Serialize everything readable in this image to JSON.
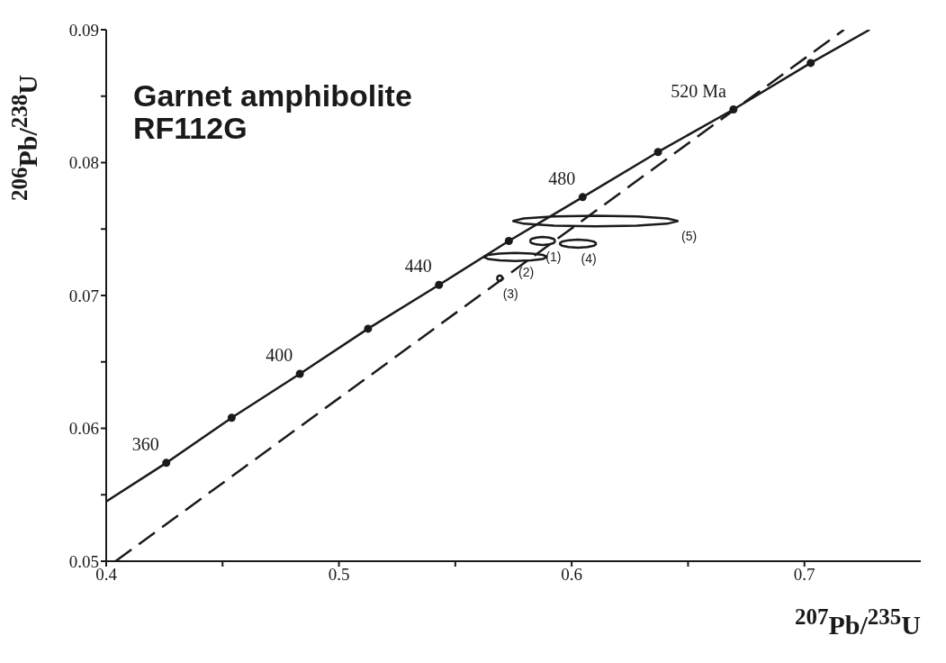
{
  "chart_data": {
    "type": "line",
    "title": "Garnet amphibolite RF112G",
    "xlabel": "$^{207}$Pb/$^{235}$U",
    "ylabel": "$^{206}$Pb/$^{238}$U",
    "xlim": [
      0.4,
      0.75
    ],
    "xticks": [
      0.4,
      {
        "value": 0.45,
        "label": null
      },
      0.5,
      {
        "value": 0.55,
        "label": null
      },
      0.6,
      {
        "value": 0.65,
        "label": null
      },
      0.7
    ],
    "ylim": [
      0.05,
      0.09
    ],
    "yticks": [
      0.05,
      {
        "value": 0.055,
        "label": null
      },
      0.06,
      {
        "value": 0.065,
        "label": null
      },
      0.07,
      {
        "value": 0.075,
        "label": null
      },
      0.08,
      {
        "value": 0.085,
        "label": null
      },
      0.09
    ],
    "grid": false,
    "legend": false,
    "series": [
      {
        "color": "#1a1a1a",
        "marker": "none",
        "line_style": "solid",
        "x": [
          0.4,
          0.4258,
          0.4539,
          0.4832,
          0.5125,
          0.543,
          0.573,
          0.6047,
          0.6371,
          0.6695,
          0.7027,
          0.728
        ],
        "values": [
          0.0545,
          0.0574,
          0.0608,
          0.0641,
          0.0675,
          0.0708,
          0.0741,
          0.0774,
          0.0808,
          0.084,
          0.0875,
          0.09
        ]
      },
      {
        "type": "scatter",
        "color": "#1a1a1a",
        "marker": "circle",
        "x": [
          0.4258,
          0.4539,
          0.4832,
          0.5125,
          0.543,
          0.573,
          0.6047,
          0.6371,
          0.6695,
          0.7027
        ],
        "values": [
          0.0574,
          0.0608,
          0.0641,
          0.0675,
          0.0708,
          0.0741,
          0.0774,
          0.0808,
          0.084,
          0.0875
        ]
      },
      {
        "color": "#1a1a1a",
        "marker": "none",
        "line_style": "dashed",
        "x": [
          0.404,
          0.717
        ],
        "values": [
          0.05,
          0.09
        ]
      },
      {
        "color": "#1a1a1a",
        "marker": "none",
        "line_style": "solid",
        "x": [
          0.582,
          0.5827,
          0.5848,
          0.5875,
          0.5903,
          0.5923,
          0.593
        ],
        "values": [
          0.0741,
          0.07425,
          0.07436,
          0.0744,
          0.07436,
          0.07425,
          0.0741
        ]
      },
      {
        "color": "#1a1a1a",
        "marker": "none",
        "line_style": "solid",
        "x": [
          0.582,
          0.5827,
          0.5848,
          0.5875,
          0.5903,
          0.5923,
          0.593
        ],
        "values": [
          0.0741,
          0.07395,
          0.07384,
          0.0738,
          0.07384,
          0.07395,
          0.0741
        ]
      },
      {
        "color": "#1a1a1a",
        "marker": "none",
        "line_style": "solid",
        "x": [
          0.5621,
          0.564,
          0.569,
          0.5758,
          0.5827,
          0.5877,
          0.5895
        ],
        "values": [
          0.0729,
          0.07305,
          0.07316,
          0.0732,
          0.07316,
          0.07305,
          0.0729
        ]
      },
      {
        "color": "#1a1a1a",
        "marker": "none",
        "line_style": "solid",
        "x": [
          0.5621,
          0.564,
          0.569,
          0.5758,
          0.5827,
          0.5877,
          0.5895
        ],
        "values": [
          0.0729,
          0.07275,
          0.07264,
          0.0726,
          0.07264,
          0.07275,
          0.0729
        ]
      },
      {
        "color": "#1a1a1a",
        "marker": "none",
        "line_style": "solid",
        "x": [
          0.5679,
          0.5681,
          0.5685,
          0.5691,
          0.5697,
          0.5701,
          0.5703
        ],
        "values": [
          0.0713,
          0.0714,
          0.07147,
          0.0715,
          0.07147,
          0.0714,
          0.0713
        ]
      },
      {
        "color": "#1a1a1a",
        "marker": "none",
        "line_style": "solid",
        "x": [
          0.5679,
          0.5681,
          0.5685,
          0.5691,
          0.5697,
          0.5701,
          0.5703
        ],
        "values": [
          0.0713,
          0.0712,
          0.07113,
          0.0711,
          0.07113,
          0.0712,
          0.0713
        ]
      },
      {
        "color": "#1a1a1a",
        "marker": "none",
        "line_style": "solid",
        "x": [
          0.5947,
          0.5958,
          0.5987,
          0.6027,
          0.6067,
          0.6096,
          0.6107
        ],
        "values": [
          0.0739,
          0.07405,
          0.07416,
          0.0742,
          0.07416,
          0.07405,
          0.0739
        ]
      },
      {
        "color": "#1a1a1a",
        "marker": "none",
        "line_style": "solid",
        "x": [
          0.5947,
          0.5958,
          0.5987,
          0.6027,
          0.6067,
          0.6096,
          0.6107
        ],
        "values": [
          0.0739,
          0.07375,
          0.07364,
          0.0736,
          0.07364,
          0.07375,
          0.0739
        ]
      },
      {
        "color": "#1a1a1a",
        "marker": "none",
        "line_style": "solid",
        "x": [
          0.5746,
          0.5794,
          0.5924,
          0.6102,
          0.628,
          0.641,
          0.6458
        ],
        "values": [
          0.0756,
          0.0758,
          0.07595,
          0.076,
          0.07595,
          0.0758,
          0.0756
        ]
      },
      {
        "color": "#1a1a1a",
        "marker": "none",
        "line_style": "solid",
        "x": [
          0.5746,
          0.5794,
          0.5924,
          0.6102,
          0.628,
          0.641,
          0.6458
        ],
        "values": [
          0.0756,
          0.0754,
          0.07525,
          0.0752,
          0.07525,
          0.0754,
          0.0756
        ]
      }
    ],
    "annotations": [
      {
        "text": "360",
        "x": 0.4258,
        "y": 0.0574
      },
      {
        "text": "400",
        "x": 0.4832,
        "y": 0.0641
      },
      {
        "text": "440",
        "x": 0.543,
        "y": 0.0708
      },
      {
        "text": "480",
        "x": 0.6047,
        "y": 0.0774
      },
      {
        "text": "520 Ma",
        "x": 0.6695,
        "y": 0.084
      },
      {
        "text": "(1)",
        "x": 0.5875,
        "y": 0.0741
      },
      {
        "text": "(2)",
        "x": 0.5758,
        "y": 0.0729
      },
      {
        "text": "(3)",
        "x": 0.5691,
        "y": 0.0713
      },
      {
        "text": "(4)",
        "x": 0.6027,
        "y": 0.0739
      },
      {
        "text": "(5)",
        "x": 0.6458,
        "y": 0.0756
      }
    ]
  }
}
